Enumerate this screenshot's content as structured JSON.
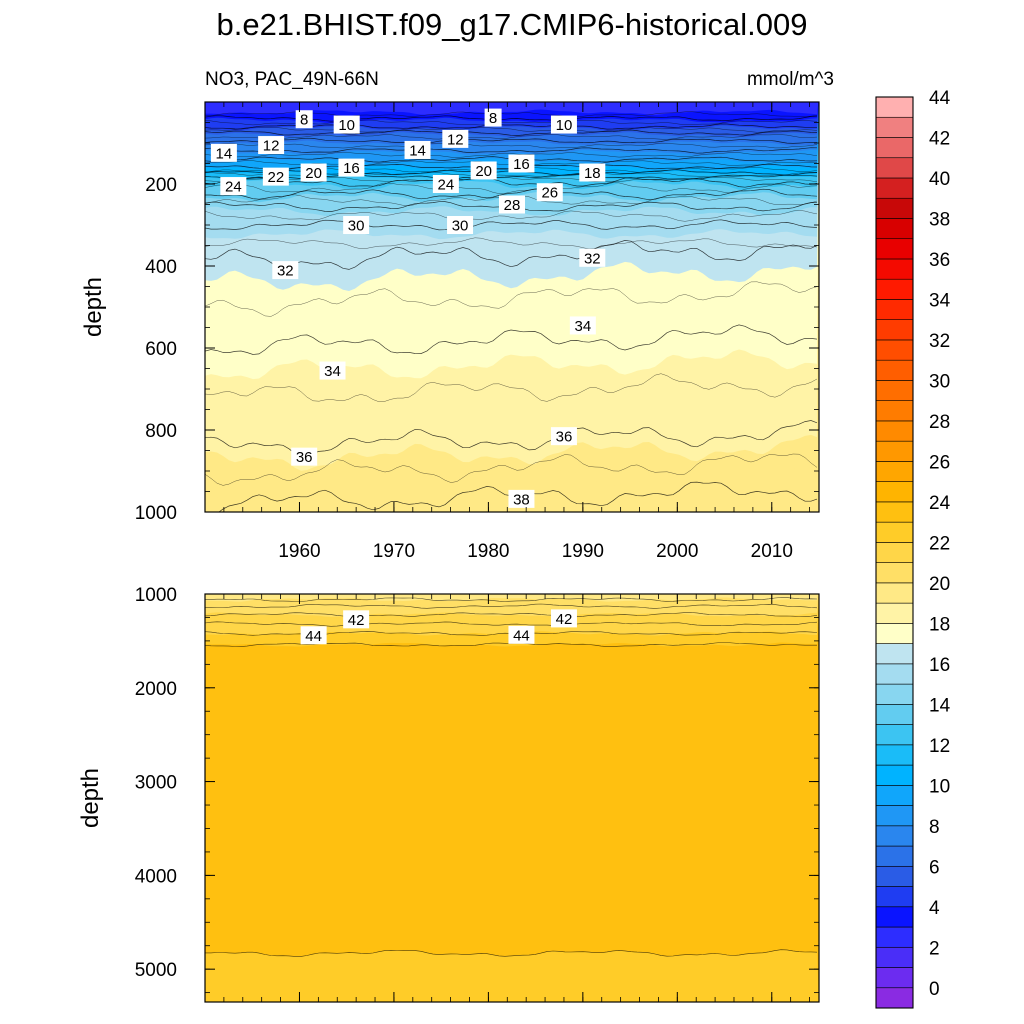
{
  "chart_data": {
    "type": "heatmap",
    "title": "b.e21.BHIST.f09_g17.CMIP6-historical.009",
    "subtitle_left": "NO3, PAC_49N-66N",
    "units": "mmol/m^3",
    "x_range": [
      1950,
      2015
    ],
    "x_ticks": [
      "1960",
      "1970",
      "1980",
      "1990",
      "2000",
      "2010"
    ],
    "top_panel": {
      "ylabel": "depth",
      "ylim": [
        0,
        1000
      ],
      "y_ticks": [
        "200",
        "400",
        "600",
        "800",
        "1000"
      ],
      "contour_levels": [
        {
          "level": 8,
          "depth": 60
        },
        {
          "level": 10,
          "depth": 75
        },
        {
          "level": 12,
          "depth": 95
        },
        {
          "level": 14,
          "depth": 118
        },
        {
          "level": 16,
          "depth": 140
        },
        {
          "level": 18,
          "depth": 158
        },
        {
          "level": 20,
          "depth": 172
        },
        {
          "level": 22,
          "depth": 183
        },
        {
          "level": 24,
          "depth": 195
        },
        {
          "level": 26,
          "depth": 225
        },
        {
          "level": 28,
          "depth": 255
        },
        {
          "level": 30,
          "depth": 300
        },
        {
          "level": 32,
          "depth": 390
        },
        {
          "level": 34,
          "depth": 600
        },
        {
          "level": 36,
          "depth": 840
        },
        {
          "level": 38,
          "depth": 980
        }
      ],
      "labels": [
        {
          "text": "8",
          "year": 1960.5,
          "depth": 42
        },
        {
          "text": "10",
          "year": 1965,
          "depth": 55
        },
        {
          "text": "12",
          "year": 1957,
          "depth": 105
        },
        {
          "text": "14",
          "year": 1952,
          "depth": 124
        },
        {
          "text": "16",
          "year": 1965.5,
          "depth": 160
        },
        {
          "text": "20",
          "year": 1961.5,
          "depth": 172
        },
        {
          "text": "22",
          "year": 1957.5,
          "depth": 182
        },
        {
          "text": "24",
          "year": 1953,
          "depth": 205
        },
        {
          "text": "14",
          "year": 1972.5,
          "depth": 117
        },
        {
          "text": "12",
          "year": 1976.5,
          "depth": 90
        },
        {
          "text": "8",
          "year": 1980.5,
          "depth": 38
        },
        {
          "text": "10",
          "year": 1988,
          "depth": 55
        },
        {
          "text": "16",
          "year": 1983.5,
          "depth": 150
        },
        {
          "text": "20",
          "year": 1979.5,
          "depth": 167
        },
        {
          "text": "24",
          "year": 1975.5,
          "depth": 200
        },
        {
          "text": "18",
          "year": 1991,
          "depth": 172
        },
        {
          "text": "26",
          "year": 1986.5,
          "depth": 220
        },
        {
          "text": "28",
          "year": 1982.5,
          "depth": 250
        },
        {
          "text": "30",
          "year": 1966,
          "depth": 300
        },
        {
          "text": "30",
          "year": 1977,
          "depth": 300
        },
        {
          "text": "32",
          "year": 1958.5,
          "depth": 410
        },
        {
          "text": "32",
          "year": 1991,
          "depth": 380
        },
        {
          "text": "34",
          "year": 1990,
          "depth": 545
        },
        {
          "text": "34",
          "year": 1963.5,
          "depth": 655
        },
        {
          "text": "36",
          "year": 1960.5,
          "depth": 865
        },
        {
          "text": "36",
          "year": 1988,
          "depth": 815
        },
        {
          "text": "38",
          "year": 1983.5,
          "depth": 968
        }
      ]
    },
    "bottom_panel": {
      "ylabel": "depth",
      "ylim": [
        1000,
        5350
      ],
      "y_ticks": [
        "1000",
        "2000",
        "3000",
        "4000",
        "5000"
      ],
      "contour_levels": [
        {
          "level": 42,
          "depth": 1200
        },
        {
          "level": 44,
          "depth": 1520
        },
        {
          "level": 46,
          "depth": 4830
        }
      ],
      "labels": [
        {
          "text": "42",
          "year": 1966,
          "depth": 1270
        },
        {
          "text": "42",
          "year": 1988,
          "depth": 1260
        },
        {
          "text": "44",
          "year": 1961.5,
          "depth": 1440
        },
        {
          "text": "44",
          "year": 1983.5,
          "depth": 1435
        }
      ]
    },
    "colorbar": {
      "labels": [
        "0",
        "2",
        "4",
        "6",
        "8",
        "10",
        "12",
        "14",
        "16",
        "18",
        "20",
        "22",
        "24",
        "26",
        "28",
        "30",
        "32",
        "34",
        "36",
        "38",
        "40",
        "42",
        "44"
      ],
      "colors": [
        "#8a2be2",
        "#6c2cf0",
        "#4a2ef8",
        "#2d2dff",
        "#0a14ff",
        "#1f3df2",
        "#2a5ce6",
        "#2b72e8",
        "#2a86ee",
        "#1f97f5",
        "#10a6fb",
        "#00b3ff",
        "#1abcf8",
        "#3cc4f2",
        "#62ccf0",
        "#88d6f0",
        "#a4dcf0",
        "#bfe4f0",
        "#ffffc8",
        "#fff3a6",
        "#ffe986",
        "#ffdf66",
        "#ffd648",
        "#ffcc28",
        "#ffc010",
        "#ffb400",
        "#ffa600",
        "#ff9800",
        "#ff8a00",
        "#ff7c00",
        "#ff6e00",
        "#ff5e00",
        "#ff4e00",
        "#ff3c00",
        "#ff2a00",
        "#ff1a00",
        "#f40a00",
        "#e80000",
        "#d80000",
        "#c80808",
        "#d42020",
        "#e04848",
        "#ea6868",
        "#f08080",
        "#ffb0b0"
      ]
    }
  }
}
